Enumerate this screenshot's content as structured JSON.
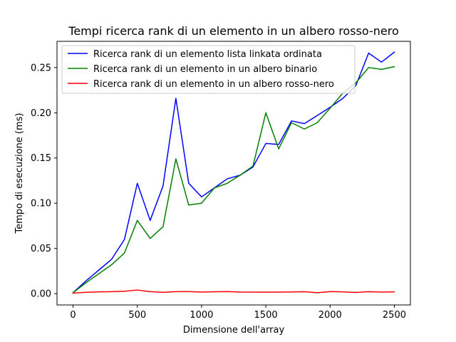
{
  "chart_data": {
    "type": "line",
    "title": "Tempi ricerca rank di un elemento in un albero rosso-nero",
    "xlabel": "Dimensione dell'array",
    "ylabel": "Tempo di esecuzione (ms)",
    "xlim": [
      -125,
      2625
    ],
    "ylim": [
      -0.0125,
      0.279
    ],
    "xticks": [
      0,
      500,
      1000,
      1500,
      2000,
      2500
    ],
    "xtick_labels": [
      "0",
      "500",
      "1000",
      "1500",
      "2000",
      "2500"
    ],
    "yticks": [
      0.0,
      0.05,
      0.1,
      0.15,
      0.2,
      0.25
    ],
    "ytick_labels": [
      "0.00",
      "0.05",
      "0.10",
      "0.15",
      "0.20",
      "0.25"
    ],
    "grid": false,
    "legend_position": "top-left",
    "x": [
      0,
      100,
      200,
      300,
      400,
      500,
      600,
      700,
      800,
      900,
      1000,
      1100,
      1200,
      1300,
      1400,
      1500,
      1600,
      1700,
      1800,
      1900,
      2000,
      2100,
      2200,
      2300,
      2400,
      2500
    ],
    "series": [
      {
        "name": "Ricerca rank di un elemento lista linkata ordinata",
        "color": "#0000ff",
        "values": [
          0.001,
          0.014,
          0.026,
          0.038,
          0.06,
          0.122,
          0.081,
          0.119,
          0.216,
          0.122,
          0.107,
          0.117,
          0.127,
          0.131,
          0.14,
          0.166,
          0.165,
          0.191,
          0.188,
          0.197,
          0.206,
          0.216,
          0.23,
          0.266,
          0.256,
          0.267
        ]
      },
      {
        "name": "Ricerca rank di un elemento in un albero binario",
        "color": "#008000",
        "values": [
          0.001,
          0.012,
          0.022,
          0.032,
          0.045,
          0.081,
          0.061,
          0.074,
          0.149,
          0.098,
          0.1,
          0.117,
          0.122,
          0.131,
          0.141,
          0.2,
          0.16,
          0.189,
          0.182,
          0.189,
          0.205,
          0.222,
          0.233,
          0.25,
          0.248,
          0.251
        ]
      },
      {
        "name": "Ricerca rank di un elemento in un albero rosso-nero",
        "color": "#ff0000",
        "values": [
          0.0005,
          0.0015,
          0.002,
          0.0022,
          0.0027,
          0.004,
          0.0022,
          0.0015,
          0.0022,
          0.0023,
          0.0018,
          0.0021,
          0.0023,
          0.0018,
          0.0017,
          0.0017,
          0.0017,
          0.0019,
          0.0022,
          0.001,
          0.0023,
          0.002,
          0.0013,
          0.0022,
          0.0018,
          0.002
        ]
      }
    ]
  }
}
